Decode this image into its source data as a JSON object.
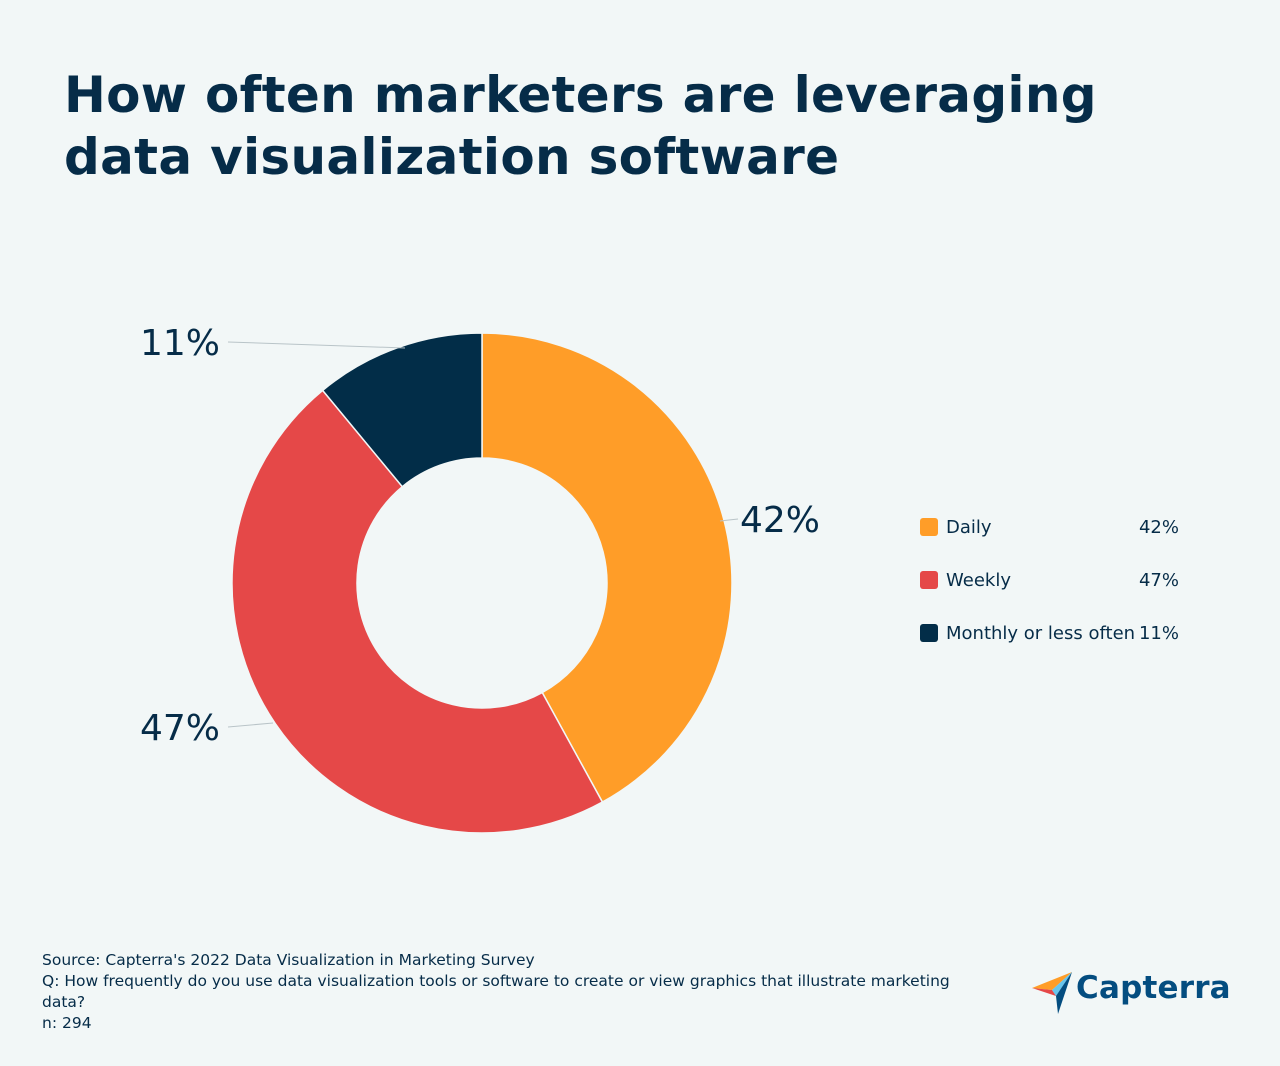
{
  "title": "How often marketers are leveraging data visualization software",
  "chart_data": {
    "type": "pie",
    "donut": true,
    "title": "How often marketers are leveraging data visualization software",
    "categories": [
      "Daily",
      "Weekly",
      "Monthly or less often"
    ],
    "values": [
      42,
      47,
      11
    ],
    "labels": [
      "42%",
      "47%",
      "11%"
    ],
    "colors": [
      "#ff9d28",
      "#e54848",
      "#022d48"
    ],
    "legend_position": "right"
  },
  "legend": [
    {
      "label": "Daily",
      "value": "42%",
      "color": "#ff9d28"
    },
    {
      "label": "Weekly",
      "value": "47%",
      "color": "#e54848"
    },
    {
      "label": "Monthly or less often",
      "value": "11%",
      "color": "#022d48"
    }
  ],
  "footer": {
    "source": "Source: Capterra's 2022 Data Visualization in Marketing Survey",
    "question": "Q: How frequently do you use data visualization tools or software to create or view graphics that illustrate marketing data?",
    "n": "n: 294"
  },
  "logo": {
    "text": "Capterra",
    "icon": "capterra-arrow-icon"
  }
}
